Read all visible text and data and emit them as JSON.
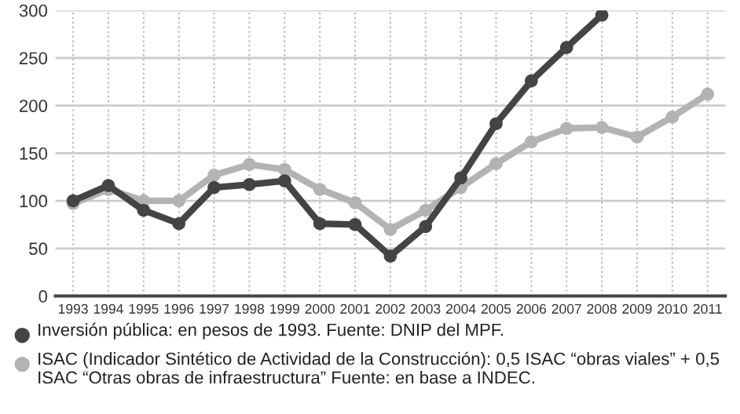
{
  "chart_data": {
    "type": "line",
    "categories": [
      "1993",
      "1994",
      "1995",
      "1996",
      "1997",
      "1998",
      "1999",
      "2000",
      "2001",
      "2002",
      "2003",
      "2004",
      "2005",
      "2006",
      "2007",
      "2008",
      "2009",
      "2010",
      "2011"
    ],
    "series": [
      {
        "name": "Inversión pública: en pesos de 1993. Fuente: DNIP del MPF.",
        "color": "#444444",
        "values": [
          100,
          116,
          90,
          76,
          114,
          117,
          121,
          76,
          75,
          42,
          73,
          124,
          181,
          226,
          261,
          295,
          null,
          null,
          null
        ]
      },
      {
        "name": "ISAC (Indicador Sintético de Actividad de la Construcción): 0,5 ISAC “obras viales” + 0,5 ISAC “Otras obras de infraestructura” Fuente: en base a INDEC.",
        "color": "#b3b3b3",
        "values": [
          97,
          112,
          100,
          100,
          127,
          138,
          133,
          112,
          98,
          70,
          90,
          114,
          139,
          162,
          176,
          177,
          167,
          188,
          212
        ]
      }
    ],
    "ylim": [
      0,
      300
    ],
    "yticks": [
      0,
      50,
      100,
      150,
      200,
      250,
      300
    ],
    "grid": true,
    "legend": "bottom",
    "marker": "circle",
    "line_style": "solid"
  }
}
